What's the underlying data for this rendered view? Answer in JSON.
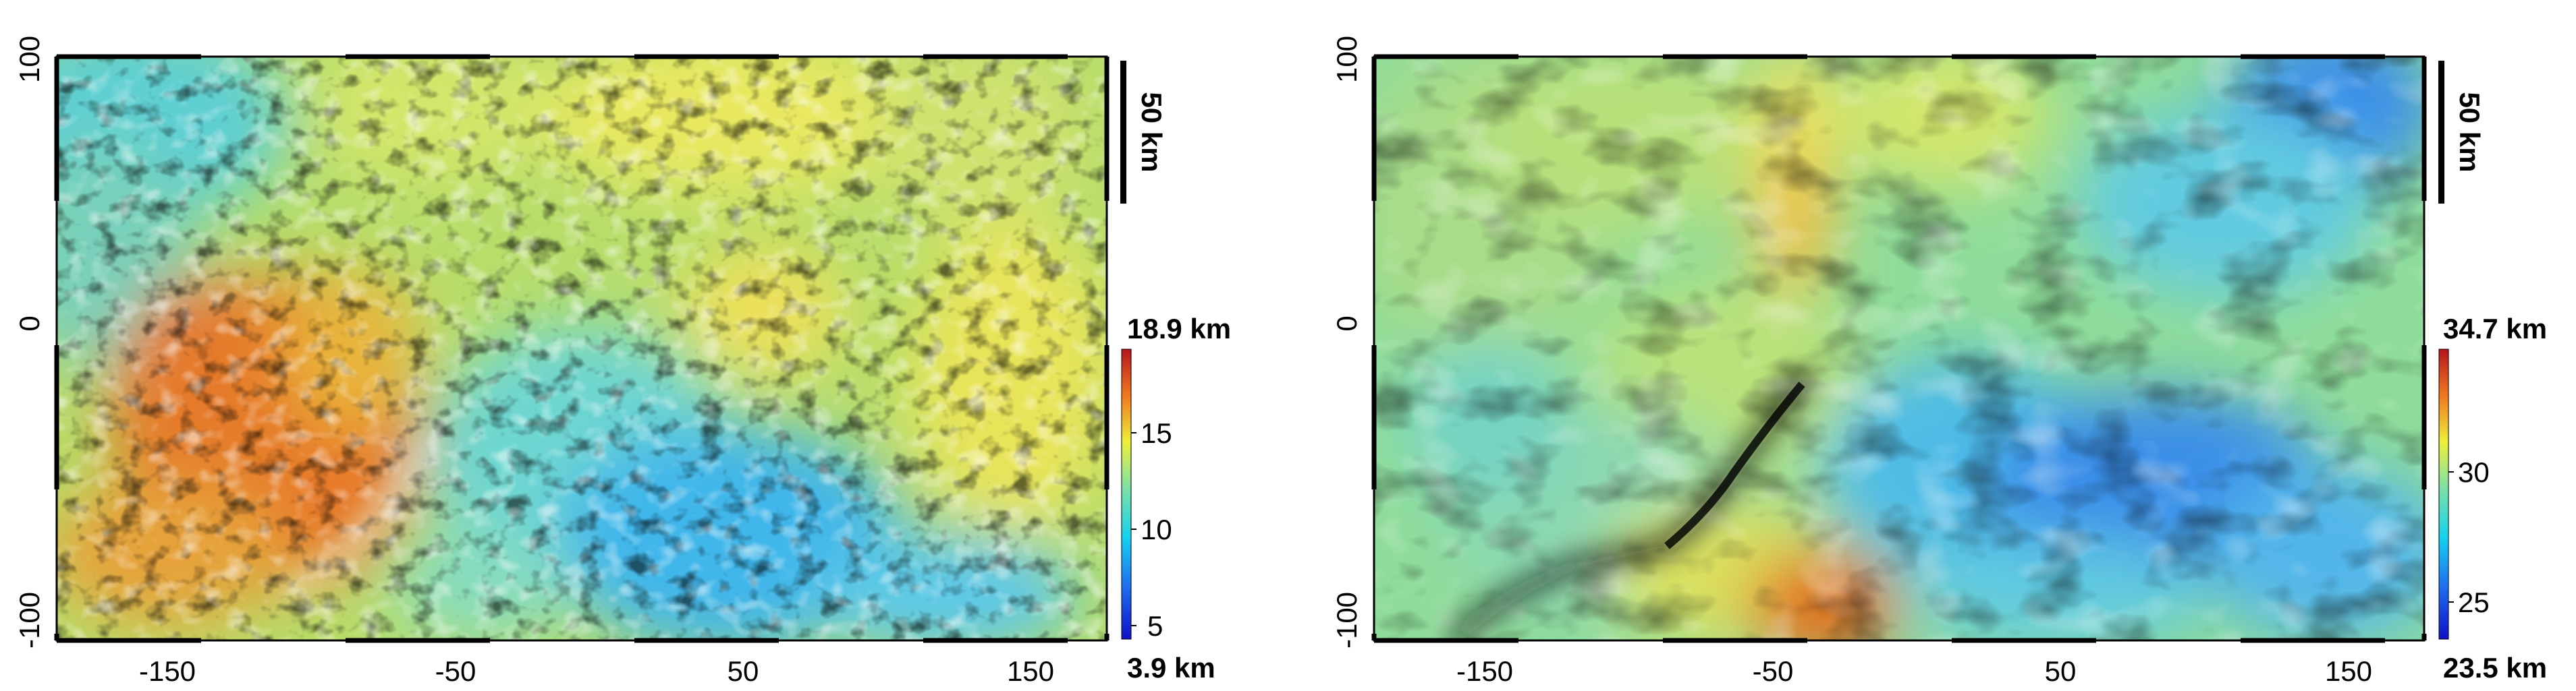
{
  "chart_data": [
    {
      "type": "heatmap",
      "x_ticks": [
        "-150",
        "-50",
        "50",
        "150"
      ],
      "y_ticks": [
        "100",
        "0",
        "-100"
      ],
      "xlim": [
        -190,
        175
      ],
      "ylim": [
        -110,
        100
      ],
      "scale_bar": "50 km",
      "colorbar": {
        "max_label": "18.9 km",
        "min_label": "3.9 km",
        "ticks": [
          "15",
          "10",
          "5"
        ],
        "range": [
          3.9,
          18.9
        ]
      }
    },
    {
      "type": "heatmap",
      "x_ticks": [
        "-150",
        "-50",
        "50",
        "150"
      ],
      "y_ticks": [
        "100",
        "0",
        "-100"
      ],
      "xlim": [
        -190,
        175
      ],
      "ylim": [
        -110,
        100
      ],
      "scale_bar": "50 km",
      "colorbar": {
        "max_label": "34.7 km",
        "min_label": "23.5 km",
        "ticks": [
          "30",
          "25"
        ],
        "range": [
          23.5,
          34.7
        ]
      }
    }
  ]
}
